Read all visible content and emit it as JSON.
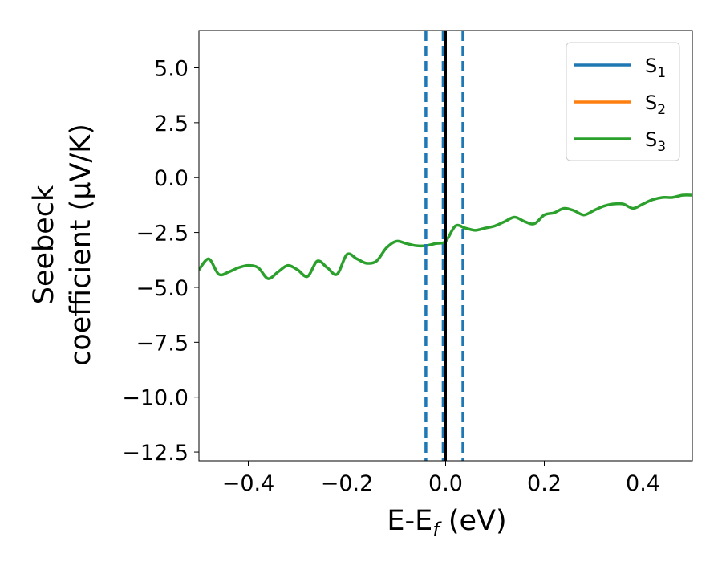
{
  "chart_data": {
    "type": "line",
    "xlabel": "E-E",
    "xlabel_sub": "f",
    "xlabel_unit": " (eV)",
    "ylabel_line1": "Seebeck",
    "ylabel_line2": "coefficient  (μV/K)",
    "xlim": [
      -0.5,
      0.5
    ],
    "ylim": [
      -12.9,
      6.7
    ],
    "xticks": [
      -0.4,
      -0.2,
      0.0,
      0.2,
      0.4
    ],
    "xtick_labels": [
      "−0.4",
      "−0.2",
      "0.0",
      "0.2",
      "0.4"
    ],
    "yticks": [
      5.0,
      2.5,
      0.0,
      -2.5,
      -5.0,
      -7.5,
      -10.0,
      -12.5
    ],
    "ytick_labels": [
      "5.0",
      "2.5",
      "0.0",
      "−2.5",
      "−5.0",
      "−7.5",
      "−10.0",
      "−12.5"
    ],
    "legend_position": "top-right",
    "grid": false,
    "vlines": [
      {
        "x": -0.04,
        "style": "dashed",
        "color": "#1f77b4"
      },
      {
        "x": -0.005,
        "style": "dashed",
        "color": "#1f77b4"
      },
      {
        "x": 0.0,
        "style": "solid",
        "color": "#000000"
      },
      {
        "x": 0.035,
        "style": "dashed",
        "color": "#1f77b4"
      }
    ],
    "series": [
      {
        "name": "S",
        "sub": "1",
        "color": "#1f77b4",
        "x": [],
        "y": []
      },
      {
        "name": "S",
        "sub": "2",
        "color": "#ff7f0e",
        "x": [],
        "y": []
      },
      {
        "name": "S",
        "sub": "3",
        "color": "#2ca02c",
        "x": [
          -0.5,
          -0.48,
          -0.46,
          -0.44,
          -0.42,
          -0.4,
          -0.38,
          -0.36,
          -0.34,
          -0.32,
          -0.3,
          -0.28,
          -0.26,
          -0.24,
          -0.22,
          -0.2,
          -0.18,
          -0.16,
          -0.14,
          -0.12,
          -0.1,
          -0.08,
          -0.06,
          -0.04,
          -0.02,
          0.0,
          0.02,
          0.04,
          0.06,
          0.08,
          0.1,
          0.12,
          0.14,
          0.16,
          0.18,
          0.2,
          0.22,
          0.24,
          0.26,
          0.28,
          0.3,
          0.32,
          0.34,
          0.36,
          0.38,
          0.4,
          0.42,
          0.44,
          0.46,
          0.48,
          0.5
        ],
        "y": [
          -4.2,
          -3.7,
          -4.4,
          -4.3,
          -4.1,
          -4.0,
          -4.1,
          -4.6,
          -4.3,
          -4.0,
          -4.2,
          -4.5,
          -3.8,
          -4.1,
          -4.4,
          -3.5,
          -3.7,
          -3.9,
          -3.8,
          -3.2,
          -2.9,
          -3.0,
          -3.1,
          -3.1,
          -3.0,
          -2.9,
          -2.2,
          -2.3,
          -2.4,
          -2.3,
          -2.2,
          -2.0,
          -1.8,
          -2.0,
          -2.1,
          -1.7,
          -1.6,
          -1.4,
          -1.5,
          -1.7,
          -1.5,
          -1.3,
          -1.2,
          -1.2,
          -1.4,
          -1.2,
          -1.0,
          -0.9,
          -0.9,
          -0.8,
          -0.8
        ]
      }
    ]
  }
}
